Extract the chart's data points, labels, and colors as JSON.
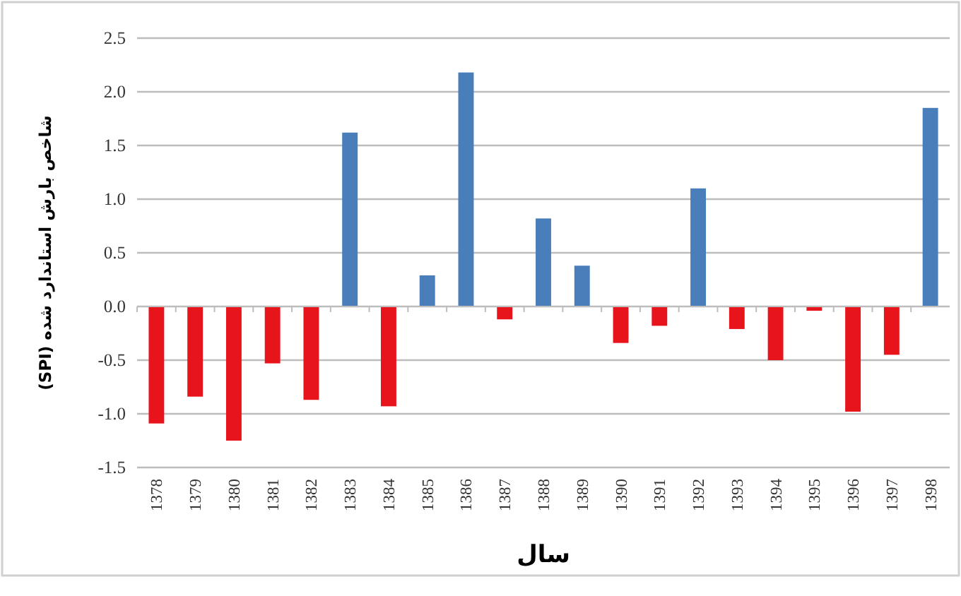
{
  "chart_data": {
    "type": "bar",
    "ylabel": "شاخص بارش استاندارد شده (SPI)",
    "xlabel": "سال",
    "categories": [
      "1378",
      "1379",
      "1380",
      "1381",
      "1382",
      "1383",
      "1384",
      "1385",
      "1386",
      "1387",
      "1388",
      "1389",
      "1390",
      "1391",
      "1392",
      "1393",
      "1394",
      "1395",
      "1396",
      "1397",
      "1398"
    ],
    "values": [
      -1.09,
      -0.84,
      -1.25,
      -0.53,
      -0.87,
      1.62,
      -0.93,
      0.29,
      2.18,
      -0.12,
      0.82,
      0.38,
      -0.34,
      -0.18,
      1.1,
      -0.21,
      -0.5,
      -0.04,
      -0.98,
      -0.45,
      1.85
    ],
    "colors": [
      "#e8141c",
      "#e8141c",
      "#e8141c",
      "#e8141c",
      "#e8141c",
      "#4a7ebb",
      "#e8141c",
      "#4a7ebb",
      "#4a7ebb",
      "#e8141c",
      "#4a7ebb",
      "#4a7ebb",
      "#e8141c",
      "#e8141c",
      "#4a7ebb",
      "#e8141c",
      "#e8141c",
      "#e8141c",
      "#e8141c",
      "#e8141c",
      "#4a7ebb"
    ],
    "ylim": [
      -1.5,
      2.5
    ],
    "yticks": [
      {
        "value": -1.5,
        "label": "-1.5"
      },
      {
        "value": -1,
        "label": "-1.0"
      },
      {
        "value": -0.5,
        "label": "-0.5"
      },
      {
        "value": 0,
        "label": "0.0"
      },
      {
        "value": 0.5,
        "label": "0.5"
      },
      {
        "value": 1,
        "label": "1.0"
      },
      {
        "value": 1.5,
        "label": "1.5"
      },
      {
        "value": 2,
        "label": "2.0"
      },
      {
        "value": 2.5,
        "label": "2.5"
      }
    ],
    "grid": "y"
  }
}
